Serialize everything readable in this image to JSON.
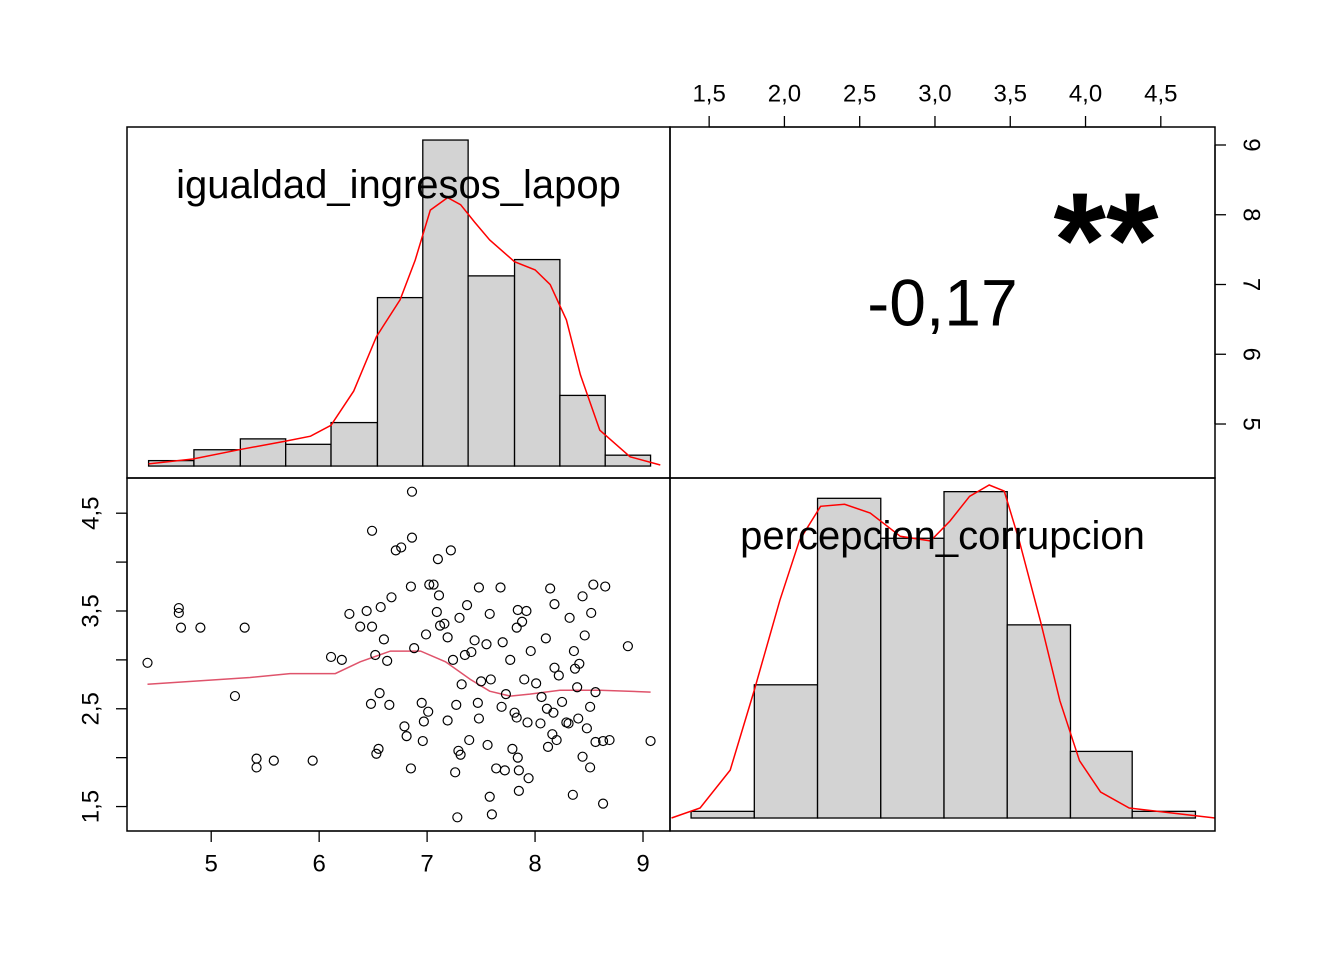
{
  "chart_data": [
    {
      "type": "histogram",
      "title": "igualdad_ingresos_lapop",
      "bins": [
        4.42,
        4.84,
        5.27,
        5.69,
        6.11,
        6.54,
        6.96,
        7.38,
        7.81,
        8.23,
        8.65,
        9.07
      ],
      "values": [
        1,
        3,
        5,
        4,
        8,
        31,
        60,
        35,
        38,
        13,
        2
      ],
      "density": {
        "x": [
          4.42,
          4.83,
          5.26,
          5.69,
          5.92,
          6.11,
          6.32,
          6.53,
          6.75,
          6.89,
          7.03,
          7.19,
          7.31,
          7.44,
          7.58,
          7.81,
          8.0,
          8.14,
          8.29,
          8.42,
          8.6,
          8.88,
          9.16
        ],
        "y": [
          0.4,
          1.3,
          3.0,
          4.6,
          5.5,
          7.5,
          13.8,
          23.8,
          30.6,
          37.9,
          47.1,
          49.4,
          48.1,
          44.9,
          41.6,
          37.6,
          36.1,
          33.4,
          26.9,
          16.8,
          6.6,
          1.7,
          0.2
        ]
      },
      "color": "#d3d3d3",
      "line_color": "#ff0000",
      "xlim": [
        4.22,
        9.25
      ],
      "ylim": [
        -2.2,
        62.4
      ]
    },
    {
      "type": "correlation",
      "values": [
        -0.17
      ],
      "value_labels": [
        "-0,17"
      ],
      "significance": "**",
      "significance_color": "#df536b",
      "xlim": [
        1.24,
        4.86
      ],
      "xticks": [
        {
          "value": 1.5,
          "label": "1,5"
        },
        {
          "value": 2.0,
          "label": "2,0"
        },
        {
          "value": 2.5,
          "label": "2,5"
        },
        {
          "value": 3.0,
          "label": "3,0"
        },
        {
          "value": 3.5,
          "label": "3,5"
        },
        {
          "value": 4.0,
          "label": "4,0"
        },
        {
          "value": 4.5,
          "label": "4,5"
        }
      ],
      "xaxis_side": "top",
      "ylim": [
        4.226,
        9.258
      ],
      "yticks": [
        5,
        6,
        7,
        8,
        9
      ],
      "yaxis_side": "right"
    },
    {
      "type": "scatter",
      "x": [
        4.41,
        4.7,
        4.7,
        4.72,
        4.9,
        5.22,
        5.31,
        5.42,
        5.42,
        5.58,
        5.94,
        6.11,
        6.21,
        6.28,
        6.38,
        6.44,
        6.49,
        6.49,
        6.52,
        6.53,
        6.48,
        6.55,
        6.56,
        6.57,
        6.6,
        6.63,
        6.65,
        6.67,
        6.71,
        6.76,
        6.79,
        6.81,
        6.85,
        6.85,
        6.86,
        6.86,
        6.88,
        6.95,
        6.96,
        6.97,
        6.99,
        7.02,
        7.06,
        7.09,
        7.1,
        7.11,
        7.12,
        7.16,
        7.19,
        7.19,
        7.22,
        7.24,
        7.26,
        7.27,
        7.28,
        7.29,
        7.3,
        7.32,
        7.35,
        7.37,
        7.39,
        7.41,
        7.44,
        7.47,
        7.48,
        7.48,
        7.5,
        7.55,
        7.56,
        7.58,
        7.59,
        7.64,
        7.68,
        7.69,
        7.7,
        7.73,
        7.77,
        7.79,
        7.81,
        7.83,
        7.84,
        7.85,
        7.84,
        7.83,
        7.88,
        7.9,
        7.92,
        7.93,
        7.96,
        8.01,
        8.05,
        8.06,
        8.1,
        8.12,
        8.14,
        8.16,
        8.17,
        8.18,
        8.18,
        8.2,
        8.22,
        8.25,
        8.29,
        8.31,
        8.32,
        8.36,
        8.37,
        8.4,
        8.41,
        8.44,
        8.44,
        8.46,
        8.48,
        8.51,
        8.51,
        8.52,
        8.54,
        8.56,
        8.56,
        8.63,
        8.65,
        8.69,
        8.86,
        9.07,
        8.35,
        8.63,
        7.94,
        8.11,
        8.39,
        7.72,
        7.85,
        7.58,
        7.6,
        7.31,
        7.01
      ],
      "y": [
        2.97,
        3.53,
        3.48,
        3.33,
        3.33,
        2.63,
        3.33,
        1.99,
        1.9,
        1.97,
        1.97,
        3.03,
        3.0,
        3.47,
        3.34,
        3.5,
        4.32,
        3.34,
        3.05,
        2.04,
        2.55,
        2.09,
        2.66,
        3.54,
        3.21,
        2.99,
        2.54,
        3.64,
        4.12,
        4.15,
        2.32,
        2.22,
        1.89,
        3.75,
        4.25,
        4.72,
        3.12,
        2.56,
        2.17,
        2.37,
        3.26,
        3.77,
        3.77,
        3.49,
        4.03,
        3.66,
        3.35,
        3.37,
        3.23,
        2.38,
        4.12,
        3.0,
        1.85,
        2.54,
        1.39,
        2.07,
        3.43,
        2.75,
        3.05,
        3.56,
        2.18,
        3.08,
        3.2,
        2.56,
        3.74,
        2.4,
        2.78,
        3.16,
        2.13,
        3.47,
        2.8,
        1.89,
        3.74,
        2.52,
        3.18,
        2.65,
        3.0,
        2.09,
        2.46,
        2.41,
        2.0,
        1.87,
        3.51,
        3.33,
        3.39,
        2.8,
        3.5,
        2.36,
        3.09,
        2.76,
        2.35,
        2.62,
        3.22,
        2.11,
        3.73,
        2.24,
        2.46,
        2.92,
        3.57,
        2.18,
        2.84,
        2.57,
        2.36,
        2.35,
        3.43,
        3.09,
        2.91,
        2.4,
        2.96,
        3.65,
        2.01,
        3.25,
        2.3,
        2.52,
        1.9,
        3.48,
        3.77,
        2.16,
        2.67,
        2.17,
        3.75,
        2.18,
        3.14,
        2.17,
        1.62,
        1.53,
        1.79,
        2.5,
        2.72,
        1.87,
        1.66,
        1.6,
        1.42,
        2.03,
        2.47
      ],
      "smooth": {
        "x": [
          4.41,
          5.36,
          5.73,
          6.15,
          6.38,
          6.66,
          6.94,
          7.17,
          7.4,
          7.58,
          7.77,
          7.95,
          8.23,
          8.6,
          9.07
        ],
        "y": [
          2.75,
          2.82,
          2.86,
          2.86,
          2.98,
          3.09,
          3.09,
          2.98,
          2.8,
          2.68,
          2.63,
          2.65,
          2.69,
          2.69,
          2.67
        ],
        "color": "#df536b"
      },
      "xlim": [
        4.22,
        9.25
      ],
      "xticks": [
        5,
        6,
        7,
        8,
        9
      ],
      "xaxis_side": "bottom",
      "ylim": [
        1.25,
        4.86
      ],
      "yticks": [
        {
          "value": 1.5,
          "label": "1,5"
        },
        {
          "value": 2.5,
          "label": "2,5"
        },
        {
          "value": 3.5,
          "label": "3,5"
        },
        {
          "value": 4.5,
          "label": "4,5"
        }
      ],
      "yminorticks": [
        2,
        3,
        4
      ],
      "yaxis_side": "left"
    },
    {
      "type": "histogram",
      "title": "percepcion_corrupcion",
      "bins": [
        1.38,
        1.8,
        2.22,
        2.64,
        3.06,
        3.48,
        3.9,
        4.31,
        4.73
      ],
      "values": [
        1,
        20,
        48,
        42,
        49,
        29,
        10,
        1
      ],
      "density": {
        "x": [
          1.25,
          1.44,
          1.64,
          1.8,
          1.97,
          2.1,
          2.24,
          2.4,
          2.57,
          2.77,
          2.97,
          3.1,
          3.23,
          3.36,
          3.46,
          3.56,
          3.7,
          3.83,
          3.96,
          4.1,
          4.29,
          4.56,
          4.86
        ],
        "y": [
          0,
          1.5,
          7.2,
          19.2,
          32.7,
          41.7,
          46.8,
          47.1,
          45.8,
          42.3,
          41.6,
          44.6,
          48.3,
          50.0,
          49.1,
          41.6,
          29.6,
          17.6,
          8.6,
          3.9,
          1.5,
          0.8,
          0
        ]
      },
      "color": "#d3d3d3",
      "line_color": "#ff0000",
      "xlim": [
        1.24,
        4.86
      ],
      "ylim": [
        -1.95,
        51.05
      ]
    }
  ]
}
